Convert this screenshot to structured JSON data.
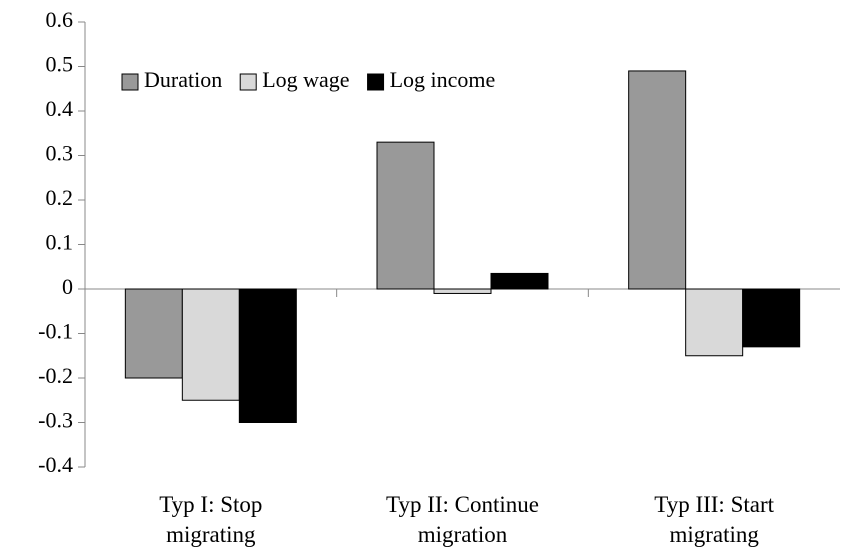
{
  "chart_data": {
    "type": "bar",
    "categories": [
      "Typ I: Stop\nmigrating",
      "Typ II: Continue\nmigration",
      "Typ III: Start\nmigrating"
    ],
    "series": [
      {
        "name": "Duration",
        "color": "#999999",
        "values": [
          -0.2,
          0.33,
          0.49
        ]
      },
      {
        "name": "Log wage",
        "color": "#d9d9d9",
        "values": [
          -0.25,
          -0.01,
          -0.15
        ]
      },
      {
        "name": "Log income",
        "color": "#000000",
        "values": [
          -0.3,
          0.035,
          -0.13
        ]
      }
    ],
    "ylim": [
      -0.4,
      0.6
    ],
    "yticks": [
      -0.4,
      -0.3,
      -0.2,
      -0.1,
      0,
      0.1,
      0.2,
      0.3,
      0.4,
      0.5,
      0.6
    ],
    "legend": "top-left"
  }
}
